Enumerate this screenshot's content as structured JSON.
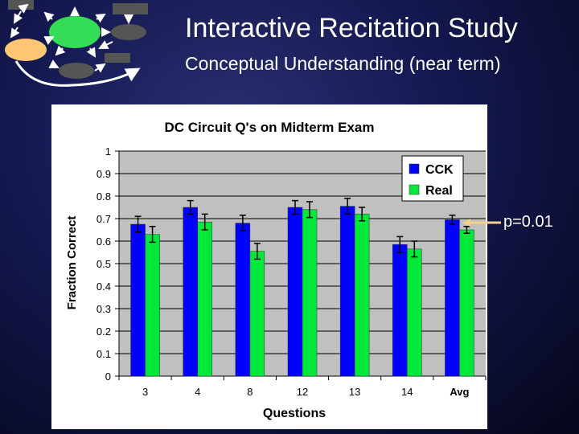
{
  "slide": {
    "title": "Interactive Recitation Study",
    "subtitle": "Conceptual Understanding (near term)"
  },
  "callout": {
    "label": "p=0.01",
    "target": "Avg"
  },
  "colors": {
    "cck": "#0000ff",
    "real": "#00e83a",
    "plot_bg": "#c0c0c0",
    "callout_line": "#f5d08a"
  },
  "chart_data": {
    "type": "bar",
    "title": "DC Circuit Q's on Midterm Exam",
    "xlabel": "Questions",
    "ylabel": "Fraction Correct",
    "ylim": [
      0,
      1
    ],
    "yticks": [
      "0",
      "0.1",
      "0.2",
      "0.3",
      "0.4",
      "0.5",
      "0.6",
      "0.7",
      "0.8",
      "0.9",
      "1"
    ],
    "categories": [
      "3",
      "4",
      "8",
      "12",
      "13",
      "14",
      "Avg"
    ],
    "series": [
      {
        "name": "CCK",
        "color": "#0000ff",
        "values": [
          0.675,
          0.75,
          0.68,
          0.75,
          0.755,
          0.585,
          0.695
        ],
        "errors": [
          0.035,
          0.03,
          0.035,
          0.03,
          0.035,
          0.035,
          0.02
        ]
      },
      {
        "name": "Real",
        "color": "#00e83a",
        "values": [
          0.63,
          0.685,
          0.555,
          0.74,
          0.72,
          0.565,
          0.65
        ],
        "errors": [
          0.035,
          0.035,
          0.035,
          0.035,
          0.03,
          0.035,
          0.015
        ]
      }
    ],
    "legend": "top-right",
    "grid": true
  }
}
